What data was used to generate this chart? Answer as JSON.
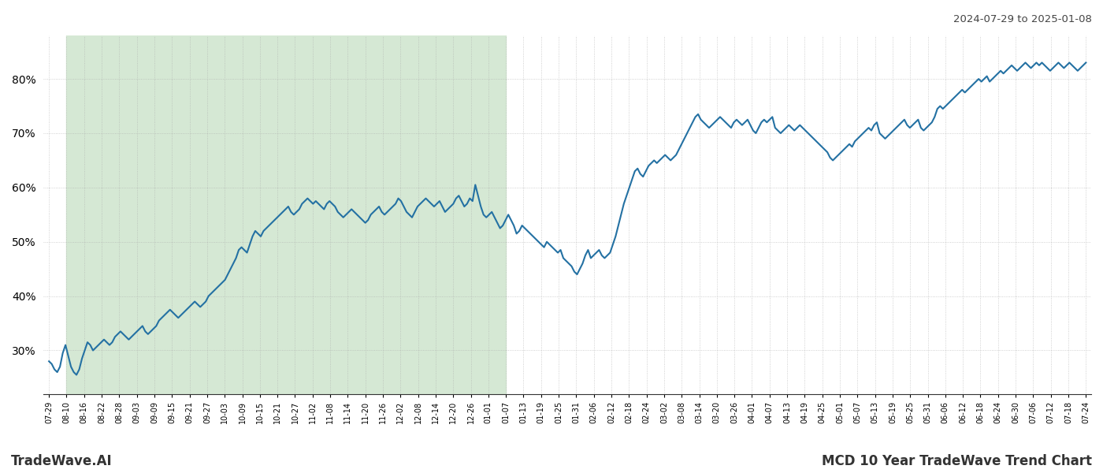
{
  "title_right": "2024-07-29 to 2025-01-08",
  "footer_left": "TradeWave.AI",
  "footer_right": "MCD 10 Year TradeWave Trend Chart",
  "line_color": "#2471a3",
  "line_width": 1.5,
  "bg_color": "#ffffff",
  "shaded_region_color": "#d5e8d4",
  "ylim": [
    22,
    88
  ],
  "yticks": [
    30,
    40,
    50,
    60,
    70,
    80
  ],
  "grid_color": "#aaaaaa",
  "x_labels": [
    "07-29",
    "08-10",
    "08-16",
    "08-22",
    "08-28",
    "09-03",
    "09-09",
    "09-15",
    "09-21",
    "09-27",
    "10-03",
    "10-09",
    "10-15",
    "10-21",
    "10-27",
    "11-02",
    "11-08",
    "11-14",
    "11-20",
    "11-26",
    "12-02",
    "12-08",
    "12-14",
    "12-20",
    "12-26",
    "01-01",
    "01-07",
    "01-13",
    "01-19",
    "01-25",
    "01-31",
    "02-06",
    "02-12",
    "02-18",
    "02-24",
    "03-02",
    "03-08",
    "03-14",
    "03-20",
    "03-26",
    "04-01",
    "04-07",
    "04-13",
    "04-19",
    "04-25",
    "05-01",
    "05-07",
    "05-13",
    "05-19",
    "05-25",
    "05-31",
    "06-06",
    "06-12",
    "06-18",
    "06-24",
    "06-30",
    "07-06",
    "07-12",
    "07-18",
    "07-24"
  ],
  "y_values": [
    28.0,
    27.5,
    26.5,
    26.0,
    27.0,
    29.5,
    31.0,
    29.0,
    27.0,
    26.0,
    25.5,
    26.5,
    28.5,
    30.0,
    31.5,
    31.0,
    30.0,
    30.5,
    31.0,
    31.5,
    32.0,
    31.5,
    31.0,
    31.5,
    32.5,
    33.0,
    33.5,
    33.0,
    32.5,
    32.0,
    32.5,
    33.0,
    33.5,
    34.0,
    34.5,
    33.5,
    33.0,
    33.5,
    34.0,
    34.5,
    35.5,
    36.0,
    36.5,
    37.0,
    37.5,
    37.0,
    36.5,
    36.0,
    36.5,
    37.0,
    37.5,
    38.0,
    38.5,
    39.0,
    38.5,
    38.0,
    38.5,
    39.0,
    40.0,
    40.5,
    41.0,
    41.5,
    42.0,
    42.5,
    43.0,
    44.0,
    45.0,
    46.0,
    47.0,
    48.5,
    49.0,
    48.5,
    48.0,
    49.5,
    51.0,
    52.0,
    51.5,
    51.0,
    52.0,
    52.5,
    53.0,
    53.5,
    54.0,
    54.5,
    55.0,
    55.5,
    56.0,
    56.5,
    55.5,
    55.0,
    55.5,
    56.0,
    57.0,
    57.5,
    58.0,
    57.5,
    57.0,
    57.5,
    57.0,
    56.5,
    56.0,
    57.0,
    57.5,
    57.0,
    56.5,
    55.5,
    55.0,
    54.5,
    55.0,
    55.5,
    56.0,
    55.5,
    55.0,
    54.5,
    54.0,
    53.5,
    54.0,
    55.0,
    55.5,
    56.0,
    56.5,
    55.5,
    55.0,
    55.5,
    56.0,
    56.5,
    57.0,
    58.0,
    57.5,
    56.5,
    55.5,
    55.0,
    54.5,
    55.5,
    56.5,
    57.0,
    57.5,
    58.0,
    57.5,
    57.0,
    56.5,
    57.0,
    57.5,
    56.5,
    55.5,
    56.0,
    56.5,
    57.0,
    58.0,
    58.5,
    57.5,
    56.5,
    57.0,
    58.0,
    57.5,
    60.5,
    58.5,
    56.5,
    55.0,
    54.5,
    55.0,
    55.5,
    54.5,
    53.5,
    52.5,
    53.0,
    54.0,
    55.0,
    54.0,
    53.0,
    51.5,
    52.0,
    53.0,
    52.5,
    52.0,
    51.5,
    51.0,
    50.5,
    50.0,
    49.5,
    49.0,
    50.0,
    49.5,
    49.0,
    48.5,
    48.0,
    48.5,
    47.0,
    46.5,
    46.0,
    45.5,
    44.5,
    44.0,
    45.0,
    46.0,
    47.5,
    48.5,
    47.0,
    47.5,
    48.0,
    48.5,
    47.5,
    47.0,
    47.5,
    48.0,
    49.5,
    51.0,
    53.0,
    55.0,
    57.0,
    58.5,
    60.0,
    61.5,
    63.0,
    63.5,
    62.5,
    62.0,
    63.0,
    64.0,
    64.5,
    65.0,
    64.5,
    65.0,
    65.5,
    66.0,
    65.5,
    65.0,
    65.5,
    66.0,
    67.0,
    68.0,
    69.0,
    70.0,
    71.0,
    72.0,
    73.0,
    73.5,
    72.5,
    72.0,
    71.5,
    71.0,
    71.5,
    72.0,
    72.5,
    73.0,
    72.5,
    72.0,
    71.5,
    71.0,
    72.0,
    72.5,
    72.0,
    71.5,
    72.0,
    72.5,
    71.5,
    70.5,
    70.0,
    71.0,
    72.0,
    72.5,
    72.0,
    72.5,
    73.0,
    71.0,
    70.5,
    70.0,
    70.5,
    71.0,
    71.5,
    71.0,
    70.5,
    71.0,
    71.5,
    71.0,
    70.5,
    70.0,
    69.5,
    69.0,
    68.5,
    68.0,
    67.5,
    67.0,
    66.5,
    65.5,
    65.0,
    65.5,
    66.0,
    66.5,
    67.0,
    67.5,
    68.0,
    67.5,
    68.5,
    69.0,
    69.5,
    70.0,
    70.5,
    71.0,
    70.5,
    71.5,
    72.0,
    70.0,
    69.5,
    69.0,
    69.5,
    70.0,
    70.5,
    71.0,
    71.5,
    72.0,
    72.5,
    71.5,
    71.0,
    71.5,
    72.0,
    72.5,
    71.0,
    70.5,
    71.0,
    71.5,
    72.0,
    73.0,
    74.5,
    75.0,
    74.5,
    75.0,
    75.5,
    76.0,
    76.5,
    77.0,
    77.5,
    78.0,
    77.5,
    78.0,
    78.5,
    79.0,
    79.5,
    80.0,
    79.5,
    80.0,
    80.5,
    79.5,
    80.0,
    80.5,
    81.0,
    81.5,
    81.0,
    81.5,
    82.0,
    82.5,
    82.0,
    81.5,
    82.0,
    82.5,
    83.0,
    82.5,
    82.0,
    82.5,
    83.0,
    82.5,
    83.0,
    82.5,
    82.0,
    81.5,
    82.0,
    82.5,
    83.0,
    82.5,
    82.0,
    82.5,
    83.0,
    82.5,
    82.0,
    81.5,
    82.0,
    82.5,
    83.0
  ],
  "shaded_label_start": "08-10",
  "shaded_label_end": "01-07"
}
